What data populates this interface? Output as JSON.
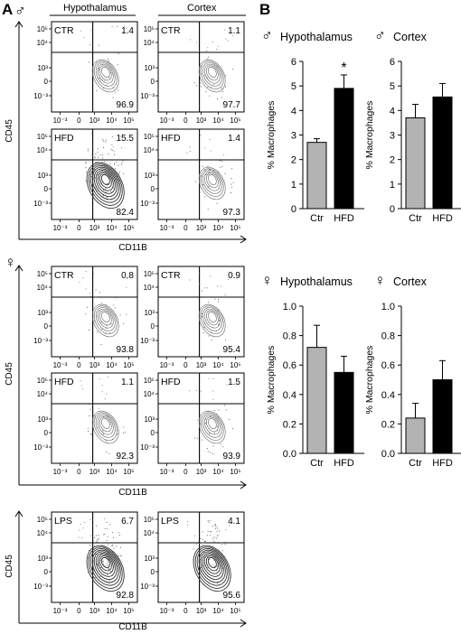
{
  "panel_a": {
    "label": "A",
    "col_headers": [
      "Hypothalamus",
      "Cortex"
    ],
    "y_axis_label": "CD45",
    "x_axis_label": "CD11B",
    "y_ticks": [
      "10⁵",
      "10⁴",
      "10³",
      "0",
      "10⁻³"
    ],
    "x_ticks": [
      "10⁻³",
      "0",
      "10³",
      "10⁴",
      "10⁵"
    ],
    "male_symbol": "♂",
    "female_symbol": "♀",
    "groups": [
      {
        "sex": "male",
        "plots": [
          {
            "label": "CTR",
            "top_right": "1.4",
            "bottom_right": "96.9"
          },
          {
            "label": "CTR",
            "top_right": "1.1",
            "bottom_right": "97.7"
          },
          {
            "label": "HFD",
            "top_right": "15.5",
            "bottom_right": "82.4"
          },
          {
            "label": "HFD",
            "top_right": "1.4",
            "bottom_right": "97.3"
          }
        ]
      },
      {
        "sex": "female",
        "plots": [
          {
            "label": "CTR",
            "top_right": "0.8",
            "bottom_right": "93.8"
          },
          {
            "label": "CTR",
            "top_right": "0.9",
            "bottom_right": "95.4"
          },
          {
            "label": "HFD",
            "top_right": "1.1",
            "bottom_right": "92.3"
          },
          {
            "label": "HFD",
            "top_right": "1.5",
            "bottom_right": "93.9"
          }
        ]
      },
      {
        "sex": "none",
        "plots": [
          {
            "label": "LPS",
            "top_right": "6.7",
            "bottom_right": "92.8"
          },
          {
            "label": "LPS",
            "top_right": "4.1",
            "bottom_right": "95.6"
          }
        ]
      }
    ]
  },
  "panel_b": {
    "label": "B",
    "ylabel": "% Macrophages",
    "categories": [
      "Ctr",
      "HFD"
    ],
    "colors": {
      "Ctr": "#b3b3b3",
      "HFD": "#000000"
    }
  },
  "chart_data": [
    {
      "type": "bar",
      "title": "Hypothalamus",
      "sex": "male",
      "categories": [
        "Ctr",
        "HFD"
      ],
      "values": [
        2.7,
        4.9
      ],
      "errors": [
        0.15,
        0.55
      ],
      "ylabel": "% Macrophages",
      "ylim": [
        0,
        6
      ],
      "yticks": [
        "0",
        "1",
        "2",
        "3",
        "4",
        "5",
        "6"
      ],
      "annotations": [
        {
          "category": "HFD",
          "text": "*"
        }
      ]
    },
    {
      "type": "bar",
      "title": "Cortex",
      "sex": "male",
      "categories": [
        "Ctr",
        "HFD"
      ],
      "values": [
        3.7,
        4.55
      ],
      "errors": [
        0.55,
        0.55
      ],
      "ylabel": "% Macrophages",
      "ylim": [
        0,
        6
      ],
      "yticks": [
        "0",
        "1",
        "2",
        "3",
        "4",
        "5",
        "6"
      ],
      "annotations": []
    },
    {
      "type": "bar",
      "title": "Hypothalamus",
      "sex": "female",
      "categories": [
        "Ctr",
        "HFD"
      ],
      "values": [
        0.72,
        0.55
      ],
      "errors": [
        0.15,
        0.11
      ],
      "ylabel": "% Macrophages",
      "ylim": [
        0,
        1.0
      ],
      "yticks": [
        "0.0",
        "0.2",
        "0.4",
        "0.6",
        "0.8",
        "1.0"
      ],
      "annotations": []
    },
    {
      "type": "bar",
      "title": "Cortex",
      "sex": "female",
      "categories": [
        "Ctr",
        "HFD"
      ],
      "values": [
        0.24,
        0.5
      ],
      "errors": [
        0.1,
        0.13
      ],
      "ylabel": "% Macrophages",
      "ylim": [
        0,
        1.0
      ],
      "yticks": [
        "0.0",
        "0.2",
        "0.4",
        "0.6",
        "0.8",
        "1.0"
      ],
      "annotations": []
    }
  ]
}
